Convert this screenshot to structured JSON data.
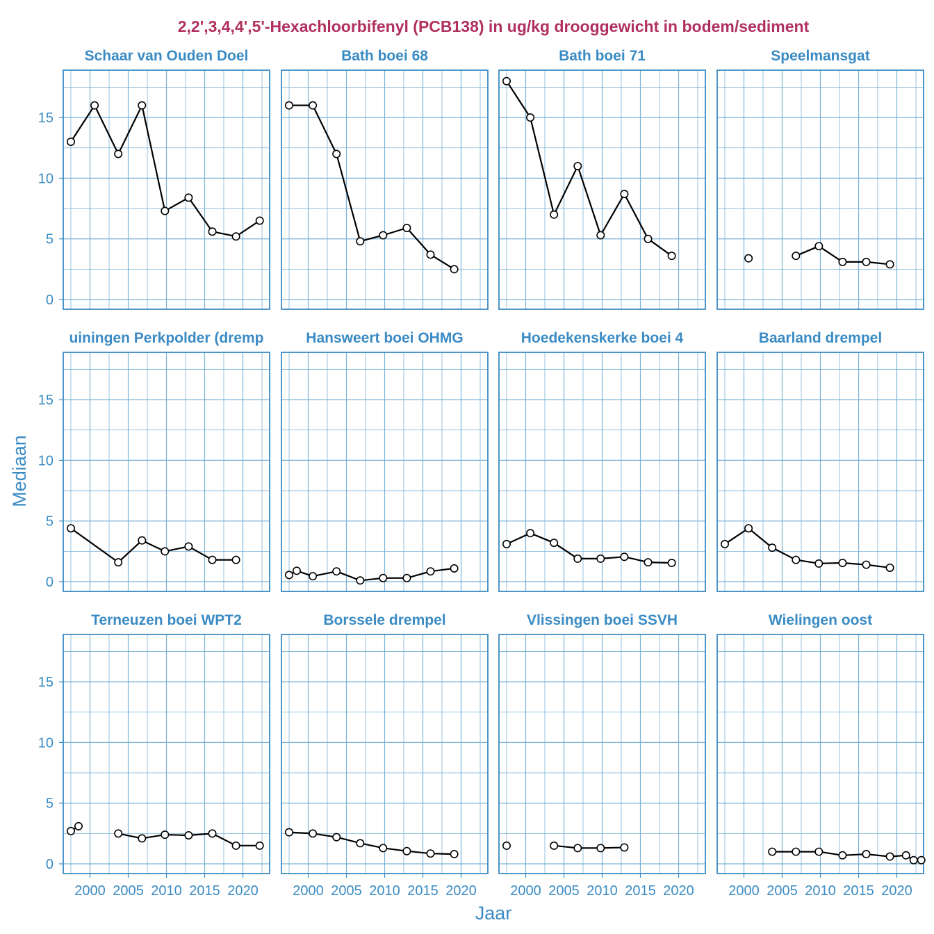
{
  "colors": {
    "title": "#b0305f",
    "accent": "#3a8bc4",
    "grid": "#7ab2d8",
    "line": "#000000",
    "point_fill": "#ffffff"
  },
  "chart_data": {
    "type": "line",
    "title": "2,2',3,4,4',5'-Hexachloorbifenyl (PCB138) in ug/kg drooggewicht in bodem/sediment",
    "xlabel": "Jaar",
    "ylabel": "Mediaan",
    "xlim": [
      1996.5,
      2023.5
    ],
    "ylim": [
      -0.8,
      18.9
    ],
    "x_ticks": [
      2000,
      2005,
      2010,
      2015,
      2020
    ],
    "y_ticks": [
      0,
      5,
      10,
      15
    ],
    "panels": [
      {
        "name": "Schaar van Ouden Doel",
        "points": [
          [
            1997.5,
            13.0
          ],
          [
            2000.6,
            16.0
          ],
          [
            2003.7,
            12.0
          ],
          [
            2006.8,
            16.0
          ],
          [
            2009.8,
            7.3
          ],
          [
            2012.9,
            8.4
          ],
          [
            2016.0,
            5.6
          ],
          [
            2019.1,
            5.2
          ],
          [
            2022.2,
            6.5
          ]
        ]
      },
      {
        "name": "Bath boei 68",
        "points": [
          [
            1997.5,
            16.0
          ],
          [
            2000.6,
            16.0
          ],
          [
            2003.7,
            12.0
          ],
          [
            2006.8,
            4.8
          ],
          [
            2009.8,
            5.3
          ],
          [
            2012.9,
            5.9
          ],
          [
            2016.0,
            3.7
          ],
          [
            2019.1,
            2.5
          ]
        ]
      },
      {
        "name": "Bath boei 71",
        "points": [
          [
            1997.5,
            18.0
          ],
          [
            2000.6,
            15.0
          ],
          [
            2003.7,
            7.0
          ],
          [
            2006.8,
            11.0
          ],
          [
            2009.8,
            5.3
          ],
          [
            2012.9,
            8.7
          ],
          [
            2016.0,
            5.0
          ],
          [
            2019.1,
            3.6
          ]
        ]
      },
      {
        "name": "Speelmansgat",
        "points": [
          [
            2000.6,
            3.4
          ],
          [
            2006.8,
            3.6
          ],
          [
            2009.8,
            4.4
          ],
          [
            2012.9,
            3.1
          ],
          [
            2016.0,
            3.1
          ],
          [
            2019.1,
            2.9
          ]
        ],
        "gap_after": [
          0
        ]
      },
      {
        "name": "Hansweert Perkpolder (drempel)",
        "display_name": "uiningen Perkpolder (dremp",
        "points": [
          [
            1997.5,
            4.4
          ],
          [
            2003.7,
            1.6
          ],
          [
            2006.8,
            3.4
          ],
          [
            2009.8,
            2.5
          ],
          [
            2012.9,
            2.9
          ],
          [
            2016.0,
            1.8
          ],
          [
            2019.1,
            1.8
          ]
        ]
      },
      {
        "name": "Hansweert boei OHMG",
        "points": [
          [
            1997.5,
            0.55
          ],
          [
            2008.5,
            0.0
          ],
          [
            1998.5,
            0.9
          ],
          [
            2000.6,
            0.45
          ],
          [
            2003.7,
            0.85
          ],
          [
            2006.8,
            0.1
          ],
          [
            2009.8,
            0.3
          ],
          [
            2012.9,
            0.3
          ],
          [
            2016.0,
            0.85
          ],
          [
            2019.1,
            1.1
          ]
        ],
        "skip_first": true
      },
      {
        "name": "Hoedekenskerke boei 4",
        "points": [
          [
            1997.5,
            3.1
          ],
          [
            2000.6,
            4.0
          ],
          [
            2003.7,
            3.2
          ],
          [
            2006.8,
            1.9
          ],
          [
            2009.8,
            1.9
          ],
          [
            2012.9,
            2.05
          ],
          [
            2016.0,
            1.6
          ],
          [
            2019.1,
            1.55
          ]
        ]
      },
      {
        "name": "Baarland drempel",
        "points": [
          [
            1997.5,
            3.1
          ],
          [
            2000.6,
            4.4
          ],
          [
            2003.7,
            2.8
          ],
          [
            2006.8,
            1.8
          ],
          [
            2009.8,
            1.5
          ],
          [
            2012.9,
            1.55
          ],
          [
            2016.0,
            1.4
          ],
          [
            2019.1,
            1.15
          ]
        ]
      },
      {
        "name": "Terneuzen boei WPT2",
        "points": [
          [
            1997.5,
            2.7
          ],
          [
            1998.5,
            3.1
          ],
          [
            2003.7,
            2.5
          ],
          [
            2006.8,
            2.1
          ],
          [
            2009.8,
            2.4
          ],
          [
            2012.9,
            2.35
          ],
          [
            2016.0,
            2.5
          ],
          [
            2019.1,
            1.5
          ],
          [
            2022.2,
            1.5
          ]
        ],
        "gap_after": [
          1
        ]
      },
      {
        "name": "Borssele drempel",
        "points": [
          [
            1997.5,
            2.6
          ],
          [
            2000.6,
            2.5
          ],
          [
            2003.7,
            2.2
          ],
          [
            2006.8,
            1.7
          ],
          [
            2009.8,
            1.3
          ],
          [
            2012.9,
            1.05
          ],
          [
            2016.0,
            0.85
          ],
          [
            2019.1,
            0.8
          ]
        ]
      },
      {
        "name": "Vlissingen boei SSVH",
        "points": [
          [
            1997.5,
            1.5
          ],
          [
            2003.7,
            1.5
          ],
          [
            2006.8,
            1.3
          ],
          [
            2009.8,
            1.3
          ],
          [
            2012.9,
            1.35
          ]
        ],
        "gap_after": [
          0
        ]
      },
      {
        "name": "Wielingen oost",
        "points": [
          [
            2003.7,
            1.0
          ],
          [
            2006.8,
            1.0
          ],
          [
            2009.8,
            1.0
          ],
          [
            2012.9,
            0.7
          ],
          [
            2016.0,
            0.8
          ],
          [
            2019.1,
            0.6
          ],
          [
            2021.2,
            0.7
          ],
          [
            2022.2,
            0.3
          ],
          [
            2023.2,
            0.3
          ]
        ]
      }
    ]
  }
}
